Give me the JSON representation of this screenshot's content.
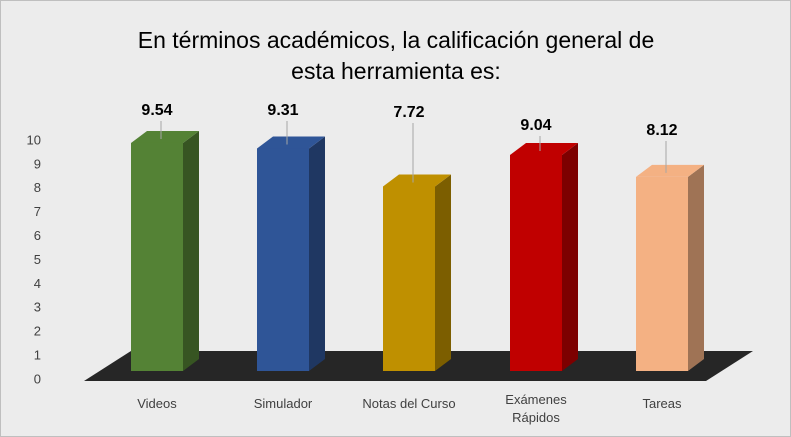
{
  "chart_data": {
    "type": "bar3d",
    "title": "En términos académicos, la calificación general de esta herramienta es:",
    "categories": [
      "Videos",
      "Simulador",
      "Notas del Curso",
      "Exámenes Rápidos",
      "Tareas"
    ],
    "values": [
      9.54,
      9.31,
      7.72,
      9.04,
      8.12
    ],
    "colors": [
      "#548235",
      "#2f5597",
      "#bf9000",
      "#c00000",
      "#f4b183"
    ],
    "ylim": [
      0,
      10
    ],
    "yticks": [
      0,
      1,
      2,
      3,
      4,
      5,
      6,
      7,
      8,
      9,
      10
    ],
    "grid": false
  }
}
